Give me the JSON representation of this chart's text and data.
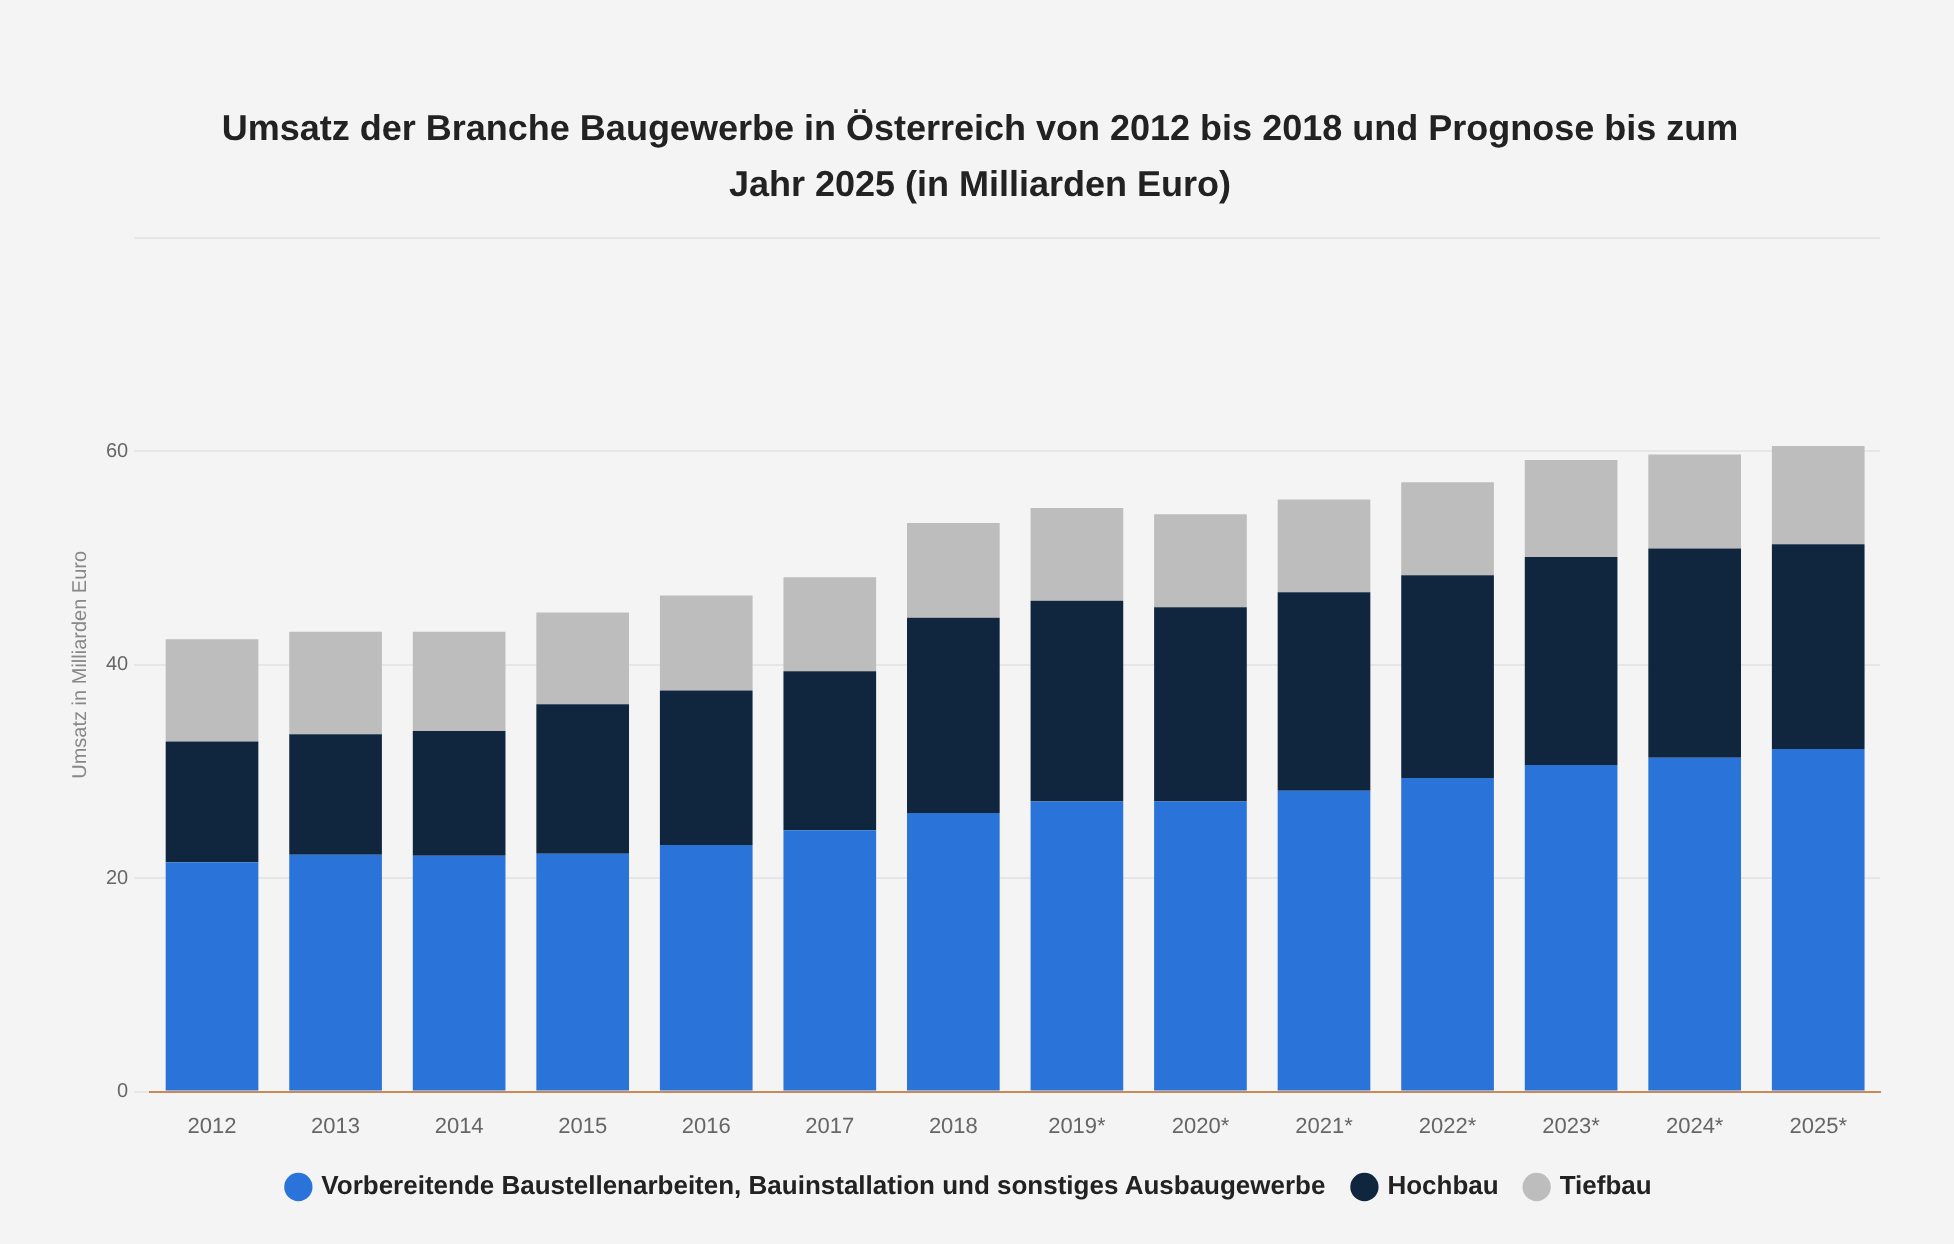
{
  "chart_data": {
    "type": "bar",
    "stacked": true,
    "title": "Umsatz der Branche Baugewerbe in Österreich von 2012 bis 2018 und Prognose bis zum Jahr 2025 (in Milliarden Euro)",
    "ylabel": "Umsatz in Milliarden Euro",
    "categories": [
      "2012",
      "2013",
      "2014",
      "2015",
      "2016",
      "2017",
      "2018",
      "2019*",
      "2020*",
      "2021*",
      "2022*",
      "2023*",
      "2024*",
      "2025*"
    ],
    "series": [
      {
        "name": "Vorbereitende Baustellenarbeiten, Bauinstallation und sonstiges Ausbaugewerbe",
        "color": "#2a73d9",
        "values": [
          21.5,
          22.2,
          22.1,
          22.3,
          23.1,
          24.5,
          26.1,
          27.2,
          27.2,
          28.2,
          29.4,
          30.6,
          31.3,
          32.1
        ]
      },
      {
        "name": "Hochbau",
        "color": "#10263f",
        "values": [
          11.3,
          11.3,
          11.7,
          14.0,
          14.5,
          14.9,
          18.3,
          18.8,
          18.2,
          18.6,
          19.0,
          19.5,
          19.6,
          19.2
        ]
      },
      {
        "name": "Tiefbau",
        "color": "#bdbdbd",
        "values": [
          9.6,
          9.6,
          9.3,
          8.6,
          8.9,
          8.8,
          8.9,
          8.7,
          8.7,
          8.7,
          8.7,
          9.1,
          8.8,
          9.2
        ]
      }
    ],
    "ylim": [
      0,
      80
    ],
    "yticks": [
      0,
      20,
      40,
      60,
      {
        "value": 80,
        "label": null
      }
    ],
    "grid": "y",
    "legend": "bottom"
  }
}
